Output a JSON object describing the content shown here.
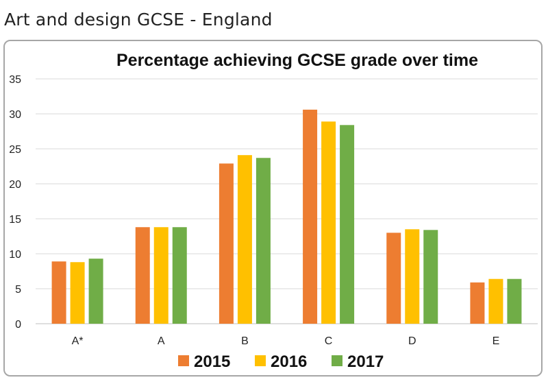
{
  "heading": "Art and design GCSE - England",
  "chart_data": {
    "type": "bar",
    "title": "Percentage achieving GCSE grade over time",
    "xlabel": "",
    "ylabel": "",
    "categories": [
      "A*",
      "A",
      "B",
      "C",
      "D",
      "E"
    ],
    "ylim": [
      0,
      35
    ],
    "yticks": [
      0,
      5,
      10,
      15,
      20,
      25,
      30,
      35
    ],
    "grid": true,
    "legend_position": "bottom",
    "series": [
      {
        "name": "2015",
        "color": "#ed7d31",
        "values": [
          8.9,
          13.8,
          22.9,
          30.6,
          13.0,
          5.9
        ]
      },
      {
        "name": "2016",
        "color": "#ffc000",
        "values": [
          8.8,
          13.8,
          24.1,
          28.9,
          13.5,
          6.4
        ]
      },
      {
        "name": "2017",
        "color": "#70ad47",
        "values": [
          9.3,
          13.8,
          23.7,
          28.4,
          13.4,
          6.4
        ]
      }
    ]
  }
}
